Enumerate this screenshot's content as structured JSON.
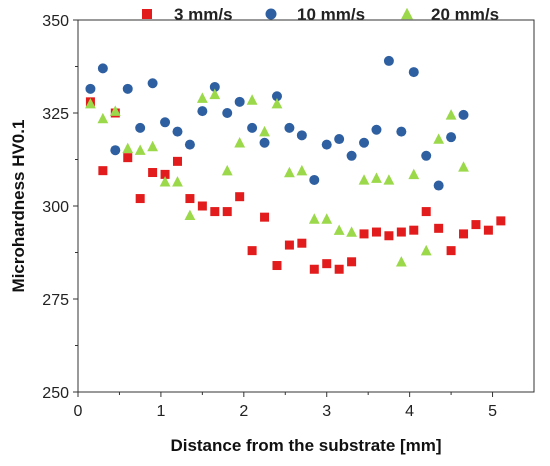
{
  "chart_data": {
    "type": "scatter",
    "title": "",
    "xlabel": "Distance from the substrate [mm]",
    "ylabel": "Microhardness HV0.1",
    "xlim": [
      0,
      5.5
    ],
    "ylim": [
      250,
      350
    ],
    "xticks": [
      "0",
      "1",
      "2",
      "3",
      "4",
      "5"
    ],
    "yticks": [
      "250",
      "275",
      "300",
      "325",
      "350"
    ],
    "grid": false,
    "legend_position": "top",
    "series": [
      {
        "name": "3 mm/s",
        "marker": "square",
        "color": "#e21c1c",
        "points": [
          [
            0.15,
            328
          ],
          [
            0.3,
            309.5
          ],
          [
            0.45,
            325
          ],
          [
            0.6,
            313
          ],
          [
            0.75,
            302
          ],
          [
            0.9,
            309
          ],
          [
            1.05,
            308.5
          ],
          [
            1.2,
            312
          ],
          [
            1.35,
            302
          ],
          [
            1.5,
            300
          ],
          [
            1.65,
            298.5
          ],
          [
            1.8,
            298.5
          ],
          [
            1.95,
            302.5
          ],
          [
            2.1,
            288
          ],
          [
            2.25,
            297
          ],
          [
            2.4,
            284
          ],
          [
            2.55,
            289.5
          ],
          [
            2.7,
            290
          ],
          [
            2.85,
            283
          ],
          [
            3.0,
            284.5
          ],
          [
            3.15,
            283
          ],
          [
            3.3,
            285
          ],
          [
            3.45,
            292.5
          ],
          [
            3.6,
            293
          ],
          [
            3.75,
            292
          ],
          [
            3.9,
            293
          ],
          [
            4.05,
            293.5
          ],
          [
            4.2,
            298.5
          ],
          [
            4.35,
            294
          ],
          [
            4.5,
            288
          ],
          [
            4.65,
            292.5
          ],
          [
            4.8,
            295
          ],
          [
            4.95,
            293.5
          ],
          [
            5.1,
            296
          ]
        ]
      },
      {
        "name": "10 mm/s",
        "marker": "circle",
        "color": "#2e5fa0",
        "points": [
          [
            0.15,
            331.5
          ],
          [
            0.3,
            337
          ],
          [
            0.45,
            315
          ],
          [
            0.6,
            331.5
          ],
          [
            0.75,
            321
          ],
          [
            0.9,
            333
          ],
          [
            1.05,
            322.5
          ],
          [
            1.2,
            320
          ],
          [
            1.35,
            316.5
          ],
          [
            1.5,
            325.5
          ],
          [
            1.65,
            332
          ],
          [
            1.8,
            325
          ],
          [
            1.95,
            328
          ],
          [
            2.1,
            321
          ],
          [
            2.25,
            317
          ],
          [
            2.4,
            329.5
          ],
          [
            2.55,
            321
          ],
          [
            2.7,
            319
          ],
          [
            2.85,
            307
          ],
          [
            3.0,
            316.5
          ],
          [
            3.15,
            318
          ],
          [
            3.3,
            313.5
          ],
          [
            3.45,
            317
          ],
          [
            3.6,
            320.5
          ],
          [
            3.75,
            339
          ],
          [
            3.9,
            320
          ],
          [
            4.05,
            336
          ],
          [
            4.2,
            313.5
          ],
          [
            4.35,
            305.5
          ],
          [
            4.5,
            318.5
          ],
          [
            4.65,
            324.5
          ]
        ]
      },
      {
        "name": "20 mm/s",
        "marker": "triangle",
        "color": "#9bd84a",
        "points": [
          [
            0.15,
            327.5
          ],
          [
            0.3,
            323.5
          ],
          [
            0.45,
            325.5
          ],
          [
            0.6,
            315.5
          ],
          [
            0.75,
            315
          ],
          [
            0.9,
            316
          ],
          [
            1.05,
            306.5
          ],
          [
            1.2,
            306.5
          ],
          [
            1.35,
            297.5
          ],
          [
            1.5,
            329
          ],
          [
            1.65,
            330
          ],
          [
            1.8,
            309.5
          ],
          [
            1.95,
            317
          ],
          [
            2.1,
            328.5
          ],
          [
            2.25,
            320
          ],
          [
            2.4,
            327.5
          ],
          [
            2.55,
            309
          ],
          [
            2.7,
            309.5
          ],
          [
            2.85,
            296.5
          ],
          [
            3.0,
            296.5
          ],
          [
            3.15,
            293.5
          ],
          [
            3.3,
            293
          ],
          [
            3.45,
            307
          ],
          [
            3.6,
            307.5
          ],
          [
            3.75,
            307
          ],
          [
            3.9,
            285
          ],
          [
            4.05,
            308.5
          ],
          [
            4.2,
            288
          ],
          [
            4.35,
            318
          ],
          [
            4.5,
            324.5
          ],
          [
            4.65,
            310.5
          ]
        ]
      }
    ]
  }
}
